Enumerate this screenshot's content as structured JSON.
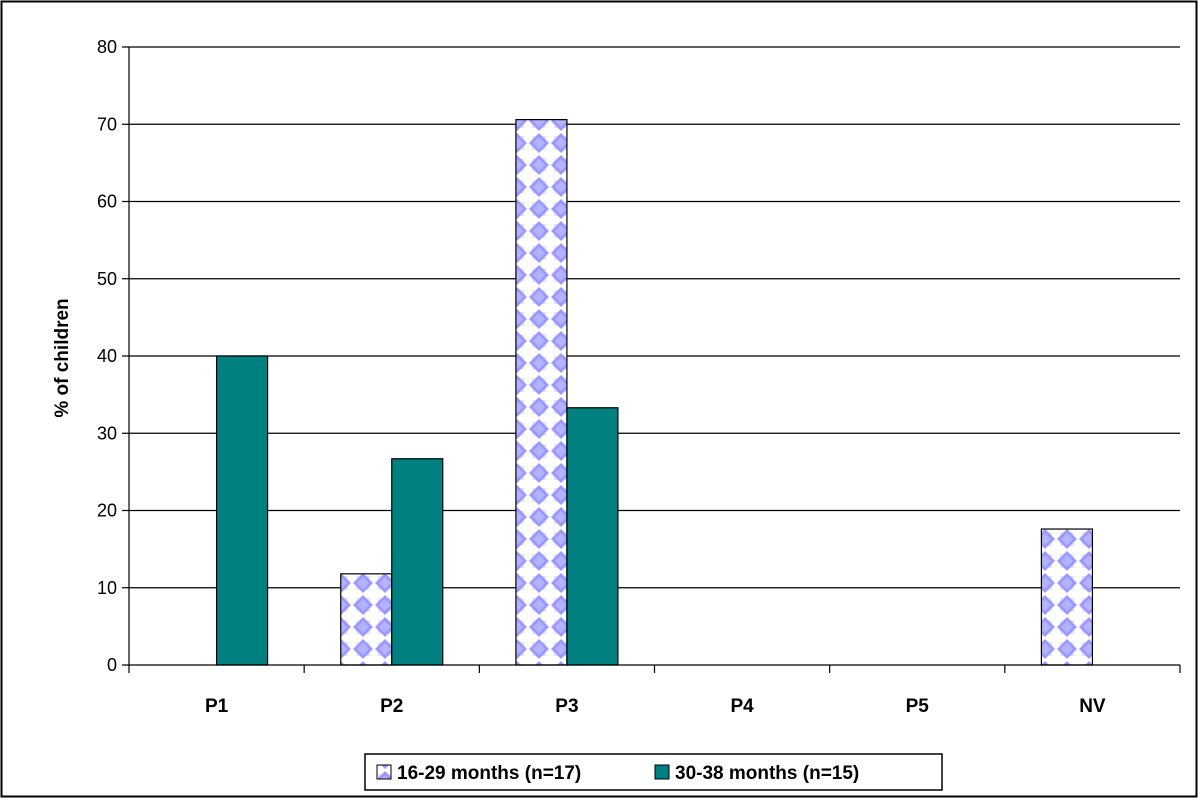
{
  "chart_data": {
    "type": "bar",
    "title": "",
    "xlabel": "",
    "ylabel": "% of children",
    "ylim": [
      0,
      80
    ],
    "yticks": [
      0,
      10,
      20,
      30,
      40,
      50,
      60,
      70,
      80
    ],
    "grid": true,
    "legend_position": "bottom",
    "categories": [
      "P1",
      "P2",
      "P3",
      "P4",
      "P5",
      "NV"
    ],
    "series": [
      {
        "name": "16-29 months (n=17)",
        "values": [
          0,
          11.8,
          70.6,
          0,
          0,
          17.6
        ],
        "color": "#9999ff",
        "pattern": "diamond-dots"
      },
      {
        "name": "30-38 months (n=15)",
        "values": [
          40,
          26.7,
          33.3,
          0,
          0,
          0
        ],
        "color": "#008080",
        "pattern": "solid"
      }
    ]
  }
}
